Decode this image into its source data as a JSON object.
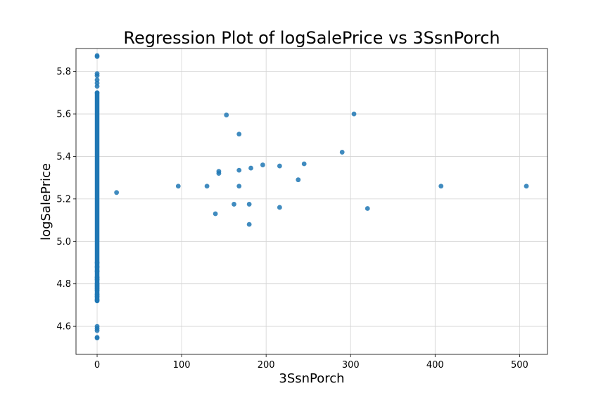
{
  "chart_data": {
    "type": "scatter",
    "title": "Regression Plot of logSalePrice vs 3SsnPorch",
    "xlabel": "3SsnPorch",
    "ylabel": "logSalePrice",
    "xlim": [
      -25,
      533
    ],
    "ylim": [
      4.468,
      5.908
    ],
    "xticks": [
      0,
      100,
      200,
      300,
      400,
      500
    ],
    "yticks": [
      4.6,
      4.8,
      5.0,
      5.2,
      5.4,
      5.6,
      5.8
    ],
    "ytick_labels": [
      "4.6",
      "4.8",
      "5.0",
      "5.2",
      "5.4",
      "5.6",
      "5.8"
    ],
    "grid": true,
    "color": "#1f77b4",
    "zero_column": {
      "x": 0,
      "y_min": 4.545,
      "y_max": 5.875,
      "dense_range": [
        4.72,
        5.7
      ],
      "points": [
        4.545,
        4.548,
        4.58,
        4.59,
        4.6,
        4.72,
        4.725,
        4.74,
        4.75,
        4.77,
        4.78,
        4.79,
        4.8,
        4.82,
        4.83,
        4.86,
        4.88,
        4.9,
        5.7,
        5.73,
        5.745,
        5.76,
        5.78,
        5.79,
        5.87,
        5.875
      ]
    },
    "points": [
      {
        "x": 23,
        "y": 5.23
      },
      {
        "x": 96,
        "y": 5.26
      },
      {
        "x": 130,
        "y": 5.26
      },
      {
        "x": 140,
        "y": 5.13
      },
      {
        "x": 144,
        "y": 5.33
      },
      {
        "x": 144,
        "y": 5.32
      },
      {
        "x": 153,
        "y": 5.595
      },
      {
        "x": 162,
        "y": 5.175
      },
      {
        "x": 168,
        "y": 5.505
      },
      {
        "x": 168,
        "y": 5.335
      },
      {
        "x": 168,
        "y": 5.26
      },
      {
        "x": 180,
        "y": 5.175
      },
      {
        "x": 180,
        "y": 5.08
      },
      {
        "x": 182,
        "y": 5.345
      },
      {
        "x": 196,
        "y": 5.36
      },
      {
        "x": 216,
        "y": 5.355
      },
      {
        "x": 216,
        "y": 5.16
      },
      {
        "x": 238,
        "y": 5.29
      },
      {
        "x": 245,
        "y": 5.365
      },
      {
        "x": 290,
        "y": 5.42
      },
      {
        "x": 304,
        "y": 5.6
      },
      {
        "x": 320,
        "y": 5.155
      },
      {
        "x": 407,
        "y": 5.26
      },
      {
        "x": 508,
        "y": 5.26
      }
    ]
  }
}
